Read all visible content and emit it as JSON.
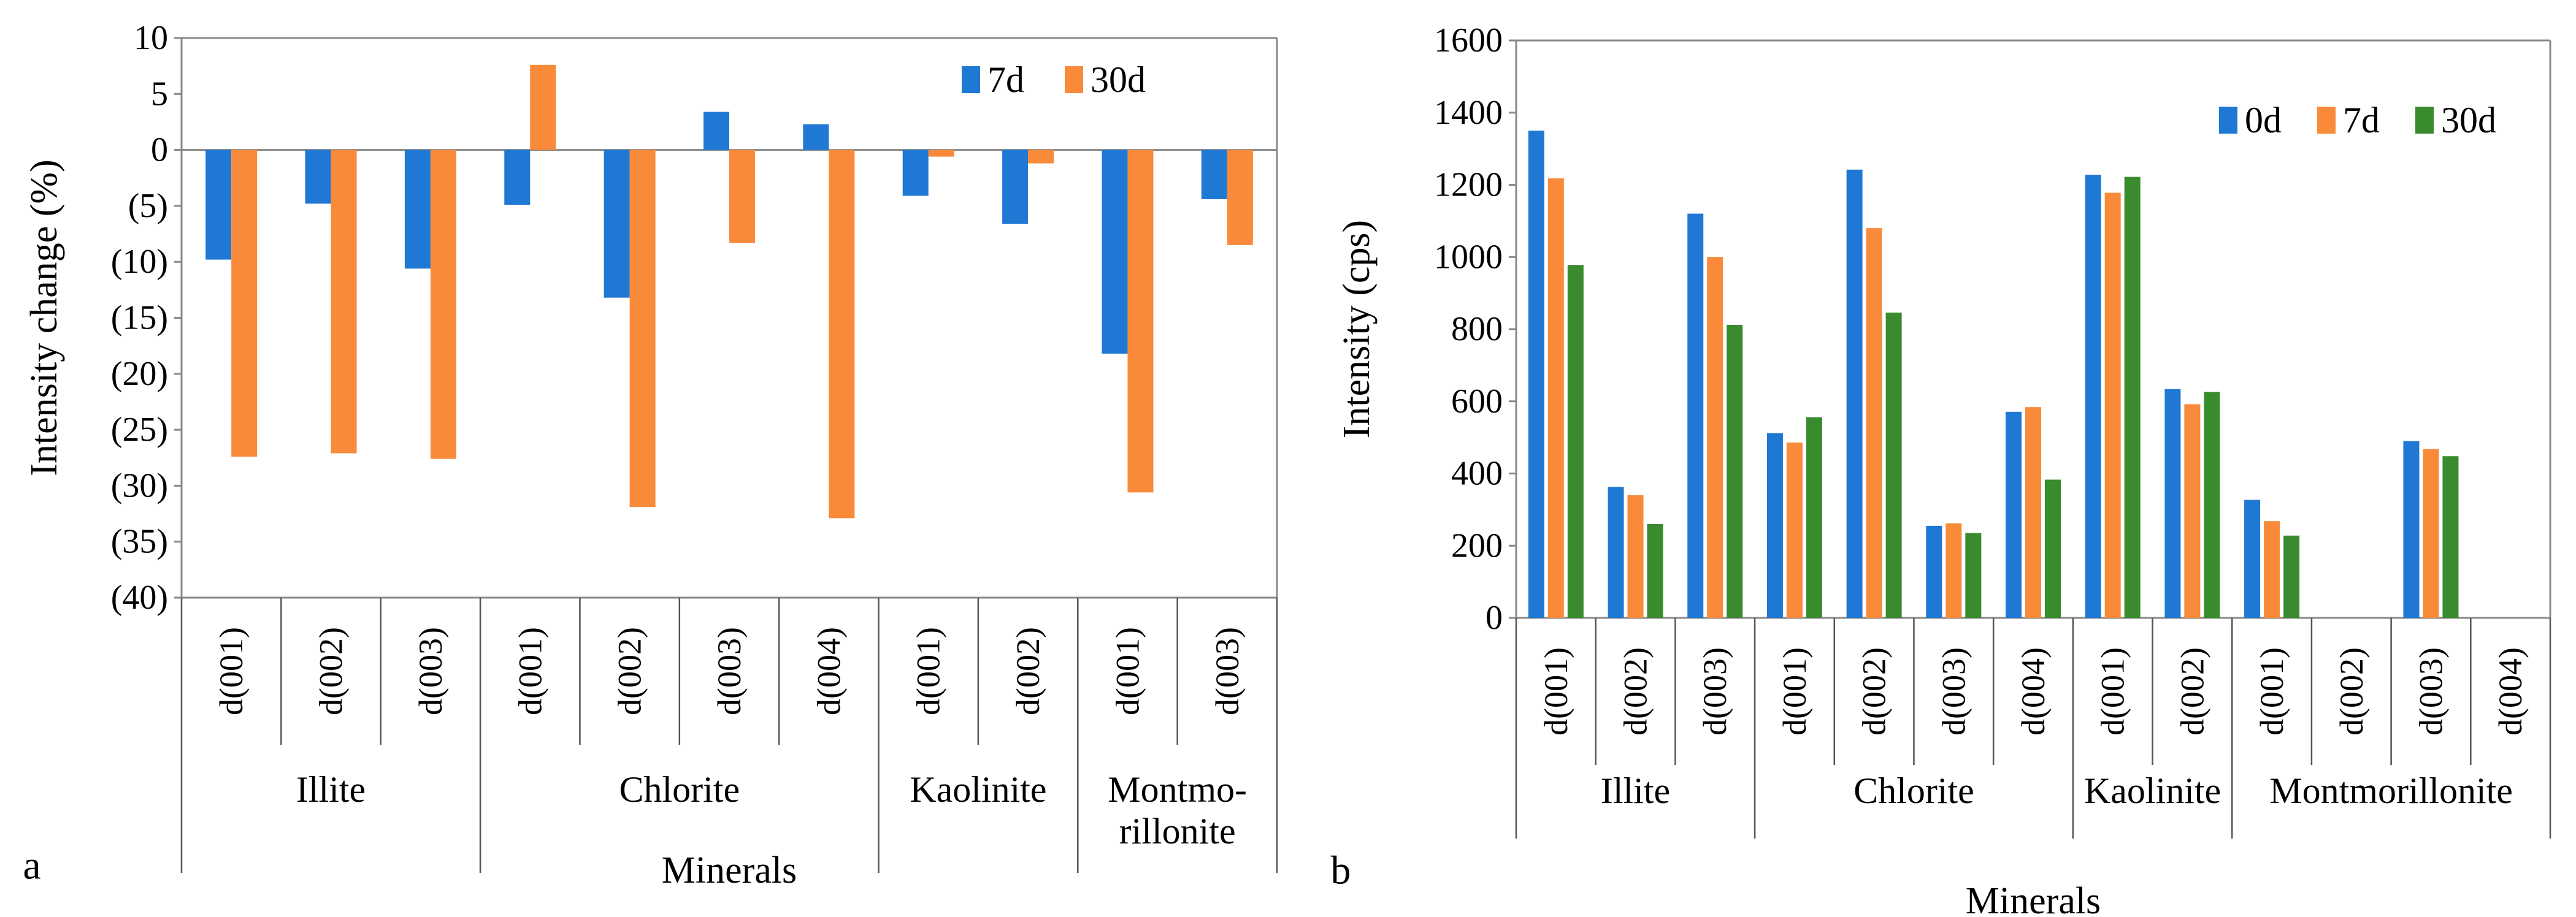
{
  "colors": {
    "blue": "#1f78d4",
    "orange": "#f98a39",
    "green": "#3a8a2e",
    "red_text": "#e8200c",
    "axis": "#888888",
    "divider": "#555555"
  },
  "chart_data": [
    {
      "id": "a",
      "panel_label": "a",
      "type": "bar",
      "ylabel": "Intensity change (%)",
      "xlabel": "Minerals",
      "ylim": [
        -40,
        10
      ],
      "ytick_values": [
        10,
        5,
        0,
        -5,
        -10,
        -15,
        -20,
        -25,
        -30,
        -35,
        -40
      ],
      "ytick_labels": [
        "10",
        "5",
        "0",
        "(5)",
        "(10)",
        "(15)",
        "(20)",
        "(25)",
        "(30)",
        "(35)",
        "(40)"
      ],
      "categories": [
        "d(001)",
        "d(002)",
        "d(003)",
        "d(001)",
        "d(002)",
        "d(003)",
        "d(004)",
        "d(001)",
        "d(002)",
        "d(001)",
        "d(003)"
      ],
      "groups": [
        {
          "label_lines": [
            "Illite"
          ],
          "count": 3
        },
        {
          "label_lines": [
            "Chlorite"
          ],
          "count": 4
        },
        {
          "label_lines": [
            "Kaolinite"
          ],
          "count": 2
        },
        {
          "label_lines": [
            "Montmo-",
            "rillonite"
          ],
          "count": 2
        }
      ],
      "series": [
        {
          "name": "7d",
          "color_key": "blue",
          "values": [
            -9.8,
            -4.8,
            -10.6,
            -4.9,
            -13.2,
            3.4,
            2.3,
            -4.1,
            -6.6,
            -18.2,
            -4.4
          ]
        },
        {
          "name": "30d",
          "color_key": "orange",
          "values": [
            -27.4,
            -27.1,
            -27.6,
            7.6,
            -31.9,
            -8.3,
            -32.9,
            -0.6,
            -1.2,
            -30.6,
            -8.5
          ]
        }
      ],
      "legend_position": "top-right",
      "grid": false
    },
    {
      "id": "b",
      "panel_label": "b",
      "type": "bar",
      "ylabel": "Intensity (cps)",
      "xlabel": "Minerals",
      "ylim": [
        0,
        1600
      ],
      "ytick_values": [
        0,
        200,
        400,
        600,
        800,
        1000,
        1200,
        1400,
        1600
      ],
      "ytick_labels": [
        "0",
        "200",
        "400",
        "600",
        "800",
        "1000",
        "1200",
        "1400",
        "1600"
      ],
      "categories": [
        "d(001)",
        "d(002)",
        "d(003)",
        "d(001)",
        "d(002)",
        "d(003)",
        "d(004)",
        "d(001)",
        "d(002)",
        "d(001)",
        "d(002)",
        "d(003)",
        "d(004)"
      ],
      "groups": [
        {
          "label_lines": [
            "Illite"
          ],
          "count": 3
        },
        {
          "label_lines": [
            "Chlorite"
          ],
          "count": 4
        },
        {
          "label_lines": [
            "Kaolinite"
          ],
          "count": 2
        },
        {
          "label_lines": [
            "Montmorillonite"
          ],
          "count": 4
        }
      ],
      "series": [
        {
          "name": "0d",
          "color_key": "blue",
          "values": [
            1350,
            363,
            1120,
            512,
            1242,
            255,
            571,
            1228,
            634,
            327,
            0,
            490,
            0
          ]
        },
        {
          "name": "7d",
          "color_key": "orange",
          "values": [
            1218,
            340,
            1000,
            486,
            1080,
            262,
            584,
            1178,
            592,
            268,
            0,
            468,
            0
          ]
        },
        {
          "name": "30d",
          "color_key": "green",
          "values": [
            978,
            260,
            812,
            556,
            846,
            235,
            383,
            1222,
            626,
            228,
            0,
            448,
            0
          ]
        }
      ],
      "legend_position": "top-right",
      "grid": false
    }
  ]
}
